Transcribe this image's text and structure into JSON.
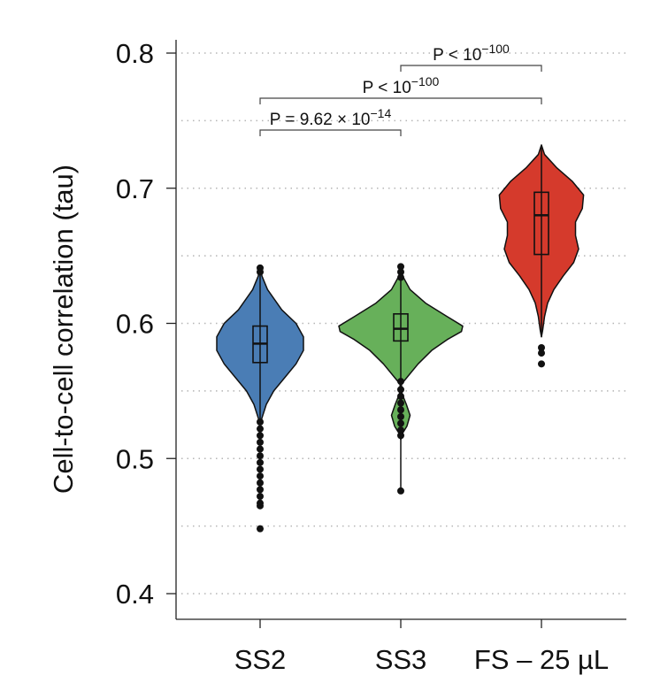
{
  "chart_data": {
    "type": "violin",
    "ylabel": "Cell-to-cell correlation (tau)",
    "xlabel": "",
    "ylim": [
      0.4,
      0.8
    ],
    "yticks": [
      "0.4",
      "0.5",
      "0.6",
      "0.7",
      "0.8"
    ],
    "grid": "horizontal dotted every 0.05",
    "categories": [
      "SS2",
      "SS3",
      "FS – 25 µL"
    ],
    "series": [
      {
        "category": "SS2",
        "color": "#4a7db5",
        "box": {
          "q1": 0.571,
          "median": 0.585,
          "q3": 0.598,
          "whisker_low": 0.528,
          "whisker_high": 0.64
        },
        "density": [
          [
            0.642,
            0
          ],
          [
            0.635,
            0.03
          ],
          [
            0.625,
            0.12
          ],
          [
            0.61,
            0.35
          ],
          [
            0.6,
            0.58
          ],
          [
            0.59,
            0.7
          ],
          [
            0.58,
            0.7
          ],
          [
            0.57,
            0.58
          ],
          [
            0.56,
            0.4
          ],
          [
            0.55,
            0.22
          ],
          [
            0.54,
            0.1
          ],
          [
            0.53,
            0.03
          ],
          [
            0.525,
            0
          ]
        ],
        "outliers": [
          0.641,
          0.638,
          0.527,
          0.522,
          0.517,
          0.512,
          0.507,
          0.502,
          0.497,
          0.492,
          0.487,
          0.482,
          0.477,
          0.472,
          0.467,
          0.465,
          0.448
        ]
      },
      {
        "category": "SS3",
        "color": "#67b05a",
        "box": {
          "q1": 0.587,
          "median": 0.596,
          "q3": 0.607,
          "whisker_low": 0.476,
          "whisker_high": 0.64
        },
        "density": [
          [
            0.642,
            0
          ],
          [
            0.635,
            0.03
          ],
          [
            0.625,
            0.15
          ],
          [
            0.615,
            0.4
          ],
          [
            0.605,
            0.75
          ],
          [
            0.598,
            1.0
          ],
          [
            0.594,
            0.98
          ],
          [
            0.588,
            0.75
          ],
          [
            0.58,
            0.5
          ],
          [
            0.57,
            0.28
          ],
          [
            0.56,
            0.1
          ],
          [
            0.555,
            0.01
          ],
          [
            0.548,
            0.02
          ],
          [
            0.54,
            0.09
          ],
          [
            0.532,
            0.15
          ],
          [
            0.524,
            0.1
          ],
          [
            0.518,
            0.02
          ],
          [
            0.514,
            0
          ]
        ],
        "outliers": [
          0.642,
          0.638,
          0.634,
          0.557,
          0.551,
          0.546,
          0.541,
          0.536,
          0.531,
          0.526,
          0.521,
          0.517,
          0.476
        ]
      },
      {
        "category": "FS – 25 µL",
        "color": "#d53a2c",
        "box": {
          "q1": 0.651,
          "median": 0.68,
          "q3": 0.697,
          "whisker_low": 0.59,
          "whisker_high": 0.73
        },
        "density": [
          [
            0.732,
            0
          ],
          [
            0.725,
            0.05
          ],
          [
            0.715,
            0.25
          ],
          [
            0.705,
            0.5
          ],
          [
            0.695,
            0.68
          ],
          [
            0.685,
            0.66
          ],
          [
            0.675,
            0.55
          ],
          [
            0.665,
            0.55
          ],
          [
            0.655,
            0.6
          ],
          [
            0.645,
            0.52
          ],
          [
            0.635,
            0.35
          ],
          [
            0.625,
            0.2
          ],
          [
            0.615,
            0.1
          ],
          [
            0.605,
            0.05
          ],
          [
            0.595,
            0.02
          ],
          [
            0.59,
            0
          ]
        ],
        "outliers": [
          0.582,
          0.578,
          0.57
        ]
      }
    ],
    "annotations": [
      {
        "from": "SS2",
        "to": "SS3",
        "label_prefix": "P = 9.62 × 10",
        "label_exp": "−14"
      },
      {
        "from": "SS2",
        "to": "FS – 25 µL",
        "label_prefix": "P < 10",
        "label_exp": "−100"
      },
      {
        "from": "SS3",
        "to": "FS – 25 µL",
        "label_prefix": "P < 10",
        "label_exp": "−100"
      }
    ]
  }
}
